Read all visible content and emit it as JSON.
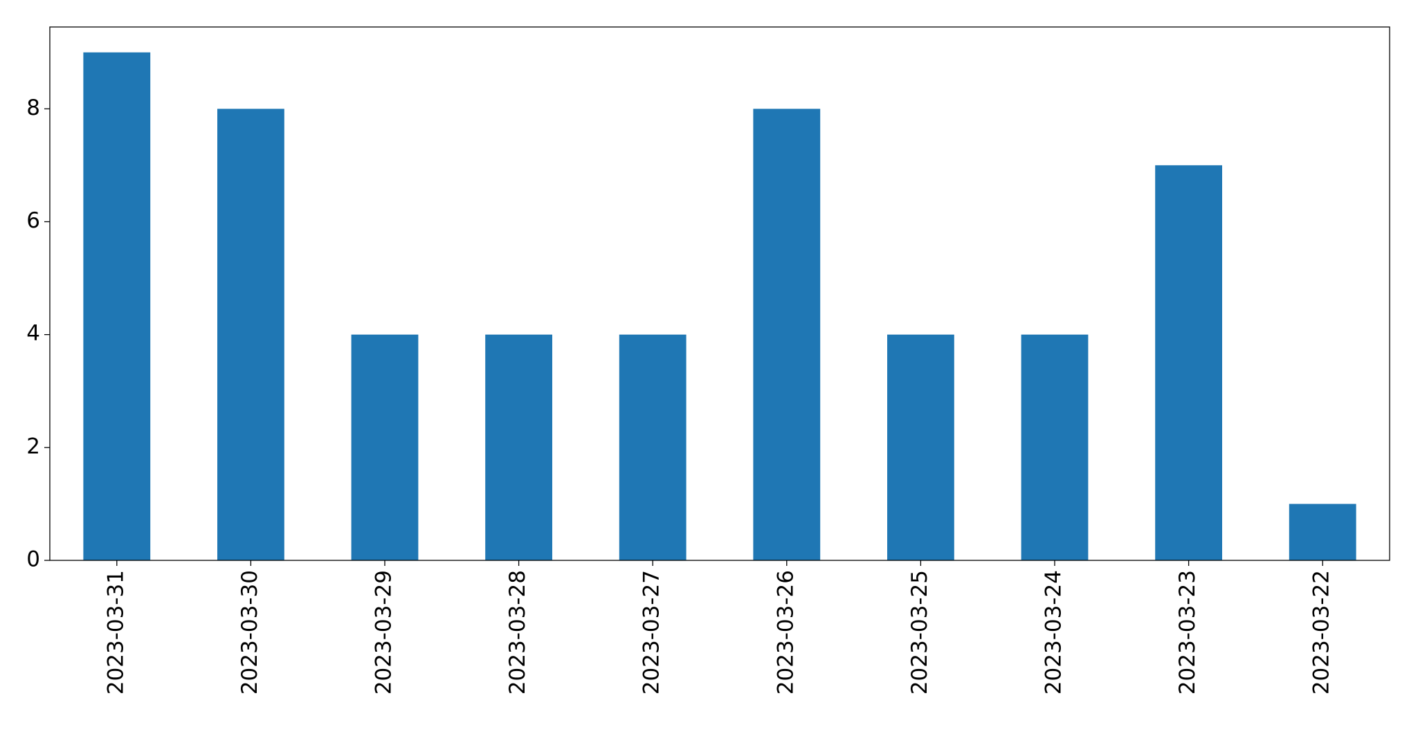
{
  "chart_data": {
    "type": "bar",
    "categories": [
      "2023-03-31",
      "2023-03-30",
      "2023-03-29",
      "2023-03-28",
      "2023-03-27",
      "2023-03-26",
      "2023-03-25",
      "2023-03-24",
      "2023-03-23",
      "2023-03-22"
    ],
    "values": [
      9,
      8,
      4,
      4,
      4,
      8,
      4,
      4,
      7,
      1
    ],
    "color": "#1f77b4",
    "ylim": [
      0,
      9.45
    ],
    "yticks": [
      0,
      2,
      4,
      6,
      8
    ],
    "grid": false
  }
}
